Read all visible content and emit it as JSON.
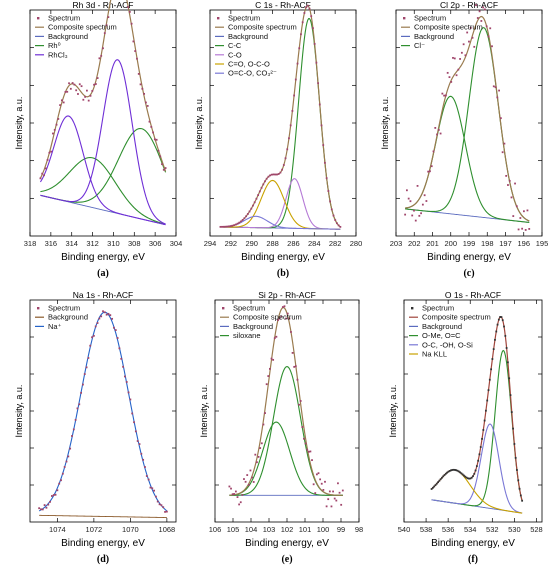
{
  "chart_data": [
    {
      "type": "line",
      "title": "Rh 3d - Rh-ACF",
      "xlabel": "Binding energy, eV",
      "ylabel": "Intensity, a.u.",
      "panel_label": "(a)",
      "xlim": [
        318,
        304
      ],
      "xticks": [
        318,
        316,
        314,
        312,
        310,
        308,
        306,
        304
      ],
      "x_reversed": true,
      "ylim": [
        0,
        1
      ],
      "legend_position": "top-left",
      "background": {
        "name": "Background",
        "color": "#5b6bbf",
        "x0": 317,
        "y0": 0.18,
        "x1": 305,
        "y1": 0.05
      },
      "series": [
        {
          "name": "Spectrum",
          "kind": "points",
          "color": "#a0456b"
        },
        {
          "name": "Composite spectrum",
          "kind": "composite",
          "color": "#9a7b4f"
        },
        {
          "name": "Background",
          "kind": "background",
          "color": "#5b6bbf"
        },
        {
          "name": "Rh0",
          "display": "Rh⁰",
          "kind": "peaks",
          "color": "#2f8f2f",
          "peaks": [
            [
              312.0,
              0.22,
              2.2
            ],
            [
              307.3,
              0.4,
              2.2
            ]
          ]
        },
        {
          "name": "RhCl3",
          "display": "RhCl₃",
          "kind": "peaks",
          "color": "#6f2fd6",
          "peaks": [
            [
              314.3,
              0.38,
              1.4
            ],
            [
              309.6,
              0.68,
              1.4
            ]
          ]
        }
      ],
      "noise": 0.03
    },
    {
      "type": "line",
      "title": "C 1s - Rh-ACF",
      "xlabel": "Binding energy, eV",
      "ylabel": "Intensity, a.u.",
      "panel_label": "(b)",
      "xlim": [
        294,
        280
      ],
      "xticks": [
        294,
        292,
        290,
        288,
        286,
        284,
        282,
        280
      ],
      "x_reversed": true,
      "ylim": [
        0,
        1
      ],
      "legend_position": "top-left",
      "background": {
        "name": "Background",
        "color": "#5b6bbf",
        "x0": 293,
        "y0": 0.04,
        "x1": 281.5,
        "y1": 0.03
      },
      "series": [
        {
          "name": "Spectrum",
          "kind": "points",
          "color": "#a0456b"
        },
        {
          "name": "Composite spectrum",
          "kind": "composite",
          "color": "#9a7b4f"
        },
        {
          "name": "Background",
          "kind": "background",
          "color": "#5b6bbf"
        },
        {
          "name": "C-C",
          "kind": "peaks",
          "color": "#2f8f2f",
          "peaks": [
            [
              284.5,
              0.93,
              1.0
            ]
          ]
        },
        {
          "name": "C-O",
          "kind": "peaks",
          "color": "#b57ad6",
          "peaks": [
            [
              285.9,
              0.22,
              0.8
            ]
          ]
        },
        {
          "name": "C=O, O-C-O",
          "kind": "peaks",
          "color": "#c9a200",
          "peaks": [
            [
              288.0,
              0.21,
              1.1
            ]
          ]
        },
        {
          "name": "O=C-O, CO3^2-",
          "display": "O=C-O, CO₃²⁻",
          "kind": "peaks",
          "color": "#7a78d6",
          "peaks": [
            [
              289.6,
              0.05,
              1.1
            ]
          ]
        }
      ],
      "noise": 0.0
    },
    {
      "type": "line",
      "title": "Cl 2p - Rh-ACF",
      "xlabel": "Binding energy, eV",
      "ylabel": "Intensity, a.u.",
      "panel_label": "(c)",
      "xlim": [
        203,
        195
      ],
      "xticks": [
        203,
        202,
        201,
        200,
        199,
        198,
        197,
        196,
        195
      ],
      "x_reversed": true,
      "ylim": [
        0,
        1
      ],
      "legend_position": "top-left",
      "background": {
        "name": "Background",
        "color": "#5b6bbf",
        "x0": 202.5,
        "y0": 0.12,
        "x1": 195.7,
        "y1": 0.06
      },
      "series": [
        {
          "name": "Spectrum",
          "kind": "points",
          "color": "#a0456b"
        },
        {
          "name": "Composite spectrum",
          "kind": "composite",
          "color": "#9a7b4f"
        },
        {
          "name": "Background",
          "kind": "background",
          "color": "#5b6bbf"
        },
        {
          "name": "Cl-",
          "display": "Cl⁻",
          "kind": "peaks",
          "color": "#2f8f2f",
          "peaks": [
            [
              200.0,
              0.52,
              0.8
            ],
            [
              198.2,
              0.84,
              0.8
            ]
          ]
        }
      ],
      "noise": 0.09
    },
    {
      "type": "line",
      "title": "Na 1s - Rh-ACF",
      "xlabel": "Binding energy, eV",
      "ylabel": "Intensity, a.u.",
      "panel_label": "(d)",
      "xlim": [
        1075.5,
        1067.5
      ],
      "xticks": [
        1074,
        1072,
        1070,
        1068
      ],
      "x_reversed": true,
      "ylim": [
        0,
        1
      ],
      "legend_position": "top-left",
      "background": {
        "name": "Background",
        "color": "#8b5a2b",
        "x0": 1075,
        "y0": 0.03,
        "x1": 1068,
        "y1": 0.02
      },
      "series": [
        {
          "name": "Spectrum",
          "kind": "points",
          "color": "#a0456b"
        },
        {
          "name": "Background",
          "kind": "background",
          "color": "#8b5a2b"
        },
        {
          "name": "Na+",
          "display": "Na⁺",
          "kind": "peaks",
          "color": "#2563c9",
          "peaks": [
            [
              1071.4,
              0.92,
              1.3
            ]
          ]
        }
      ],
      "noise": 0.015
    },
    {
      "type": "line",
      "title": "Si 2p - Rh-ACF",
      "xlabel": "Binding energy, eV",
      "ylabel": "Intensity, a.u.",
      "panel_label": "(e)",
      "xlim": [
        106,
        98
      ],
      "xticks": [
        106,
        105,
        104,
        103,
        102,
        101,
        100,
        99,
        98
      ],
      "x_reversed": true,
      "ylim": [
        0,
        1
      ],
      "legend_position": "top-left",
      "background": {
        "name": "Background",
        "color": "#5b6bbf",
        "x0": 105.2,
        "y0": 0.12,
        "x1": 98.9,
        "y1": 0.12
      },
      "series": [
        {
          "name": "Spectrum",
          "kind": "points",
          "color": "#a0456b"
        },
        {
          "name": "Composite spectrum",
          "kind": "composite",
          "color": "#9a7b4f"
        },
        {
          "name": "Background",
          "kind": "background",
          "color": "#5b6bbf"
        },
        {
          "name": "siloxane",
          "kind": "peaks",
          "color": "#2f8f2f",
          "peaks": [
            [
              102.0,
              0.58,
              0.75
            ],
            [
              102.6,
              0.33,
              0.75
            ]
          ]
        }
      ],
      "noise": 0.06
    },
    {
      "type": "line",
      "title": "O 1s - Rh-ACF",
      "xlabel": "Binding energy, eV",
      "ylabel": "Intensity, a.u.",
      "panel_label": "(f)",
      "xlim": [
        540,
        527.5
      ],
      "xticks": [
        540,
        538,
        536,
        534,
        532,
        530,
        528
      ],
      "x_reversed": true,
      "ylim": [
        0,
        1
      ],
      "legend_position": "top-left",
      "background": {
        "name": "Background",
        "color": "#5b6bbf",
        "x0": 537.5,
        "y0": 0.1,
        "x1": 529.3,
        "y1": 0.04
      },
      "series": [
        {
          "name": "Spectrum",
          "kind": "points",
          "color": "#333333"
        },
        {
          "name": "Composite spectrum",
          "kind": "composite",
          "color": "#a0453b"
        },
        {
          "name": "Background",
          "kind": "background",
          "color": "#5b6bbf"
        },
        {
          "name": "O-Me, O=C",
          "kind": "peaks",
          "color": "#2f8f2f",
          "peaks": [
            [
              531.0,
              0.72,
              0.75
            ]
          ]
        },
        {
          "name": "O-C, -OH, O-Si",
          "kind": "peaks",
          "color": "#7a78d6",
          "peaks": [
            [
              532.2,
              0.38,
              0.8
            ]
          ]
        },
        {
          "name": "Na KLL",
          "kind": "peaks",
          "color": "#c9a200",
          "peaks": [
            [
              535.4,
              0.15,
              1.4
            ]
          ]
        }
      ],
      "noise": 0.0
    }
  ]
}
